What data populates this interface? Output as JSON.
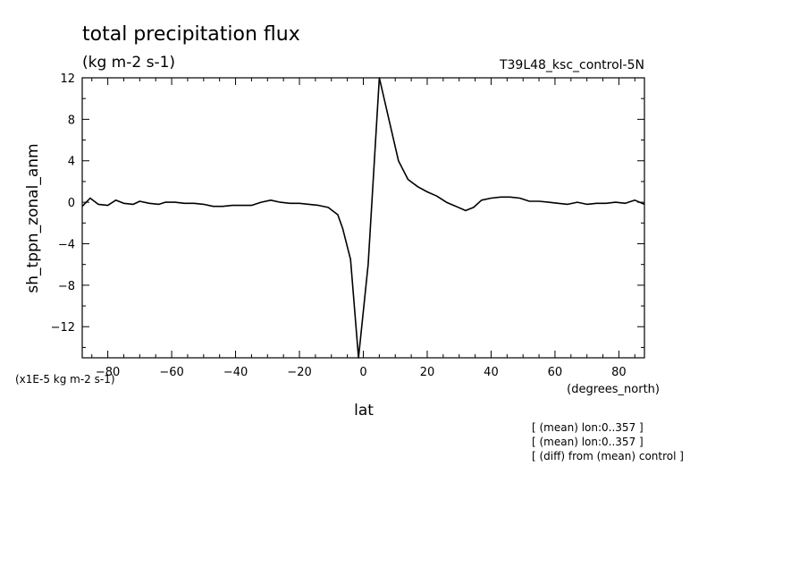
{
  "chart_data": {
    "type": "line",
    "title": "total precipitation flux",
    "subtitle": "(kg m-2 s-1)",
    "run_label": "T39L48_ksc_control-5N",
    "xlabel": "lat",
    "xunits": "(degrees_north)",
    "ylabel": "sh_tppn_zonal_anm",
    "yscale_note": "(x1E-5 kg m-2 s-1)",
    "xlim": [
      -88,
      88
    ],
    "ylim": [
      -15,
      12
    ],
    "xticks": [
      -80,
      -60,
      -40,
      -20,
      0,
      20,
      40,
      60,
      80
    ],
    "yticks": [
      12,
      8,
      4,
      0,
      -4,
      -8,
      -12
    ],
    "grid": false,
    "series": [
      {
        "color": "#000000",
        "x": [
          -88,
          -85.5,
          -83,
          -80,
          -77.5,
          -75,
          -72,
          -70,
          -67,
          -64,
          -62,
          -59,
          -56,
          -53,
          -50,
          -47,
          -44,
          -41,
          -38,
          -35,
          -32,
          -29,
          -26,
          -23,
          -20,
          -17,
          -14,
          -11,
          -8,
          -6.5,
          -4,
          -1.5,
          1.5,
          5,
          8,
          11,
          14,
          17,
          20,
          23,
          26,
          29,
          32,
          34.5,
          37,
          40,
          43,
          46,
          49,
          52,
          55,
          58,
          61,
          64,
          67,
          70,
          73,
          76,
          79,
          82,
          85,
          88
        ],
        "y": [
          -0.4,
          0.4,
          -0.2,
          -0.3,
          0.2,
          -0.1,
          -0.2,
          0.1,
          -0.1,
          -0.2,
          0.0,
          0.0,
          -0.1,
          -0.1,
          -0.2,
          -0.4,
          -0.4,
          -0.3,
          -0.3,
          -0.3,
          0.0,
          0.2,
          0.0,
          -0.1,
          -0.1,
          -0.2,
          -0.3,
          -0.5,
          -1.2,
          -2.5,
          -5.5,
          -15.0,
          -6.0,
          12.0,
          8.0,
          4.0,
          2.2,
          1.5,
          1.0,
          0.6,
          0.0,
          -0.4,
          -0.8,
          -0.5,
          0.2,
          0.4,
          0.5,
          0.5,
          0.4,
          0.1,
          0.1,
          0.0,
          -0.1,
          -0.2,
          0.0,
          -0.2,
          -0.1,
          -0.1,
          0.0,
          -0.1,
          0.2,
          -0.2
        ]
      }
    ]
  },
  "notes": [
    "[ (mean) lon:0..357 ]",
    "[ (mean) lon:0..357 ]",
    "[ (diff) from (mean) control ]"
  ]
}
